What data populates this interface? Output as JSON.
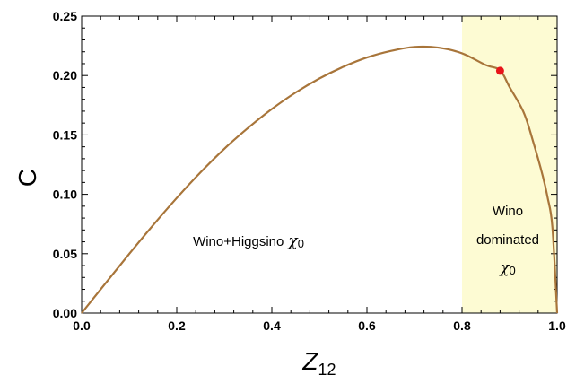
{
  "chart_data": {
    "type": "line",
    "xlabel": "Z",
    "xlabel_subscript": "12",
    "ylabel": "C",
    "xlim": [
      0,
      1
    ],
    "ylim": [
      0,
      0.25
    ],
    "x_ticks": [
      {
        "value": 0.0,
        "label": "0.0"
      },
      {
        "value": 0.2,
        "label": "0.2"
      },
      {
        "value": 0.4,
        "label": "0.4"
      },
      {
        "value": 0.6,
        "label": "0.6"
      },
      {
        "value": 0.8,
        "label": "0.8"
      },
      {
        "value": 1.0,
        "label": "1.0"
      }
    ],
    "y_ticks": [
      {
        "value": 0.0,
        "label": "0.00"
      },
      {
        "value": 0.05,
        "label": "0.05"
      },
      {
        "value": 0.1,
        "label": "0.10"
      },
      {
        "value": 0.15,
        "label": "0.15"
      },
      {
        "value": 0.2,
        "label": "0.20"
      },
      {
        "value": 0.25,
        "label": "0.25"
      }
    ],
    "grid": false,
    "series": [
      {
        "color": "#a8753a",
        "x": [
          0,
          0.05,
          0.1,
          0.15,
          0.2,
          0.25,
          0.3,
          0.35,
          0.4,
          0.45,
          0.5,
          0.55,
          0.6,
          0.65,
          0.7,
          0.75,
          0.8,
          0.85,
          0.88,
          0.9,
          0.93,
          0.95,
          0.97,
          0.98,
          0.99,
          1.0
        ],
        "y": [
          0,
          0.025,
          0.0498,
          0.0739,
          0.0969,
          0.1185,
          0.1383,
          0.1559,
          0.1718,
          0.1857,
          0.1975,
          0.2073,
          0.2152,
          0.2207,
          0.2241,
          0.2235,
          0.2187,
          0.2088,
          0.2044,
          0.1903,
          0.1686,
          0.1437,
          0.1151,
          0.0973,
          0.0725,
          0
        ]
      }
    ],
    "highlight_region": {
      "x": [
        0.8,
        1.0
      ],
      "color": "#fdfbd3"
    },
    "marker_point": {
      "x": 0.88,
      "y": 0.204,
      "color": "#e8141a"
    },
    "annotations": {
      "left_text": "Wino+Higgsino",
      "left_symbol": "χ",
      "left_symbol_sub": "0",
      "right_line1": "Wino",
      "right_line2": "dominated",
      "right_symbol": "χ",
      "right_symbol_sub": "0"
    }
  }
}
